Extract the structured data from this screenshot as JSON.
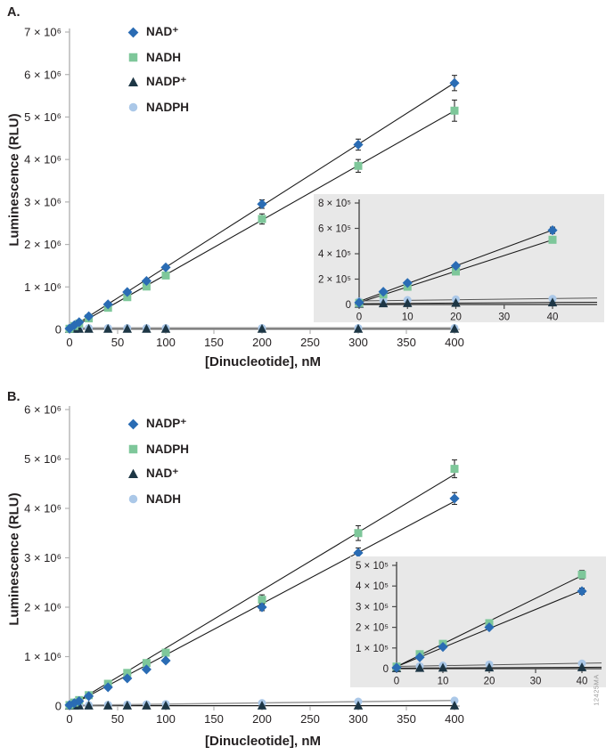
{
  "figure_id": "12425MA",
  "colors": {
    "diamond_blue": "#2a6cb4",
    "square_green": "#7ec79a",
    "triangle_navy": "#1d3645",
    "circle_lightblue": "#abc8e8",
    "fit_line": "#1a1a1a",
    "gray_line": "#999999",
    "axis_spine_main": "#b3b3b3",
    "axis_spine_inset": "#4a4a4a",
    "inset_background": "#e8e8e8",
    "text": "#231f20"
  },
  "panels": [
    {
      "label": "A.",
      "ylabel": "Luminescence (RLU)",
      "xlabel": "[Dinucleotide], nM"
    },
    {
      "label": "B.",
      "ylabel": "Luminescence (RLU)",
      "xlabel": "[Dinucleotide], nM"
    }
  ],
  "chart_data": [
    {
      "id": "A-main",
      "panel": "A",
      "role": "main",
      "type": "scatter",
      "title": "",
      "xlabel": "[Dinucleotide], nM",
      "ylabel": "Luminescence (RLU)",
      "xlim": [
        0,
        400
      ],
      "ylim": [
        0,
        7000000
      ],
      "xticks": [
        0,
        50,
        100,
        150,
        200,
        250,
        300,
        350,
        400
      ],
      "yticks": [
        {
          "v": 0,
          "label": "0"
        },
        {
          "v": 1000000,
          "label": "1 × 10⁶"
        },
        {
          "v": 2000000,
          "label": "2 × 10⁶"
        },
        {
          "v": 3000000,
          "label": "3 × 10⁶"
        },
        {
          "v": 4000000,
          "label": "4 × 10⁶"
        },
        {
          "v": 5000000,
          "label": "5 × 10⁶"
        },
        {
          "v": 6000000,
          "label": "6 × 10⁶"
        },
        {
          "v": 7000000,
          "label": "7 × 10⁶"
        }
      ],
      "grid": false,
      "legend_position": "upper-left-inside",
      "series": [
        {
          "name": "NAD⁺",
          "marker": "diamond",
          "color": "#2a6cb4",
          "line_color": "#1a1a1a",
          "line_width": 1.1,
          "x": [
            0,
            5,
            10,
            20,
            40,
            60,
            80,
            100,
            200,
            300,
            400
          ],
          "y": [
            20000,
            100000,
            170000,
            310000,
            590000,
            880000,
            1140000,
            1460000,
            2950000,
            4350000,
            5800000
          ],
          "err": [
            0,
            0,
            0,
            0,
            30000,
            40000,
            40000,
            50000,
            100000,
            130000,
            180000
          ]
        },
        {
          "name": "NADH",
          "marker": "square",
          "color": "#7ec79a",
          "line_color": "#1a1a1a",
          "line_width": 1.1,
          "x": [
            0,
            5,
            10,
            20,
            40,
            60,
            80,
            100,
            200,
            300,
            400
          ],
          "y": [
            15000,
            80000,
            140000,
            260000,
            510000,
            760000,
            1010000,
            1270000,
            2600000,
            3850000,
            5150000
          ],
          "err": [
            0,
            0,
            0,
            0,
            30000,
            40000,
            50000,
            60000,
            120000,
            150000,
            250000
          ]
        },
        {
          "name": "NADP⁺",
          "marker": "triangle",
          "color": "#1d3645",
          "line_color": "#1a1a1a",
          "line_width": 1,
          "x": [
            0,
            5,
            10,
            20,
            40,
            60,
            80,
            100,
            200,
            300,
            400
          ],
          "y": [
            12000,
            12000,
            12000,
            12000,
            12000,
            12000,
            12000,
            12000,
            12000,
            12000,
            12000
          ]
        },
        {
          "name": "NADPH",
          "marker": "circle",
          "color": "#abc8e8",
          "line_color": "#999999",
          "line_width": 2,
          "x": [
            0,
            5,
            10,
            20,
            40,
            60,
            80,
            100,
            200,
            300,
            400
          ],
          "y": [
            32000,
            32000,
            32000,
            32000,
            32000,
            32000,
            32000,
            32000,
            32000,
            32000,
            32000
          ]
        }
      ]
    },
    {
      "id": "A-inset",
      "panel": "A",
      "role": "inset",
      "type": "scatter",
      "title": "",
      "xlabel": "",
      "ylabel": "",
      "xlim": [
        0,
        40
      ],
      "ylim": [
        0,
        800000
      ],
      "xticks": [
        0,
        10,
        20,
        30,
        40
      ],
      "yticks": [
        {
          "v": 0,
          "label": "0"
        },
        {
          "v": 200000,
          "label": "2 × 10⁵"
        },
        {
          "v": 400000,
          "label": "4 × 10⁵"
        },
        {
          "v": 600000,
          "label": "6 × 10⁵"
        },
        {
          "v": 800000,
          "label": "8 × 10⁵"
        }
      ],
      "grid": false,
      "legend_position": "none",
      "series": [
        {
          "name": "NAD⁺",
          "marker": "diamond",
          "color": "#2a6cb4",
          "line_color": "#1a1a1a",
          "line_width": 1.1,
          "x": [
            0,
            5,
            10,
            20,
            40
          ],
          "y": [
            15000,
            100000,
            170000,
            305000,
            585000
          ],
          "err": [
            0,
            0,
            0,
            0,
            25000
          ]
        },
        {
          "name": "NADH",
          "marker": "square",
          "color": "#7ec79a",
          "line_color": "#1a1a1a",
          "line_width": 1.1,
          "x": [
            0,
            5,
            10,
            20,
            40
          ],
          "y": [
            12000,
            80000,
            140000,
            260000,
            510000
          ],
          "err": [
            0,
            0,
            0,
            0,
            20000
          ]
        },
        {
          "name": "NADP⁺",
          "marker": "triangle",
          "color": "#1d3645",
          "line_color": "#1a1a1a",
          "line_width": 1,
          "extend": true,
          "x": [
            0,
            5,
            10,
            20,
            40
          ],
          "y": [
            5000,
            8000,
            10000,
            12000,
            15000
          ]
        },
        {
          "name": "NADPH",
          "marker": "circle",
          "color": "#abc8e8",
          "line_color": "#555555",
          "line_width": 1,
          "extend": true,
          "x": [
            0,
            5,
            10,
            20,
            40
          ],
          "y": [
            25000,
            30000,
            35000,
            40000,
            45000
          ]
        }
      ]
    },
    {
      "id": "B-main",
      "panel": "B",
      "role": "main",
      "type": "scatter",
      "title": "",
      "xlabel": "[Dinucleotide], nM",
      "ylabel": "Luminescence (RLU)",
      "xlim": [
        0,
        400
      ],
      "ylim": [
        0,
        6000000
      ],
      "xticks": [
        0,
        50,
        100,
        150,
        200,
        250,
        300,
        350,
        400
      ],
      "yticks": [
        {
          "v": 0,
          "label": "0"
        },
        {
          "v": 1000000,
          "label": "1 × 10⁶"
        },
        {
          "v": 2000000,
          "label": "2 × 10⁶"
        },
        {
          "v": 3000000,
          "label": "3 × 10⁶"
        },
        {
          "v": 4000000,
          "label": "4 × 10⁶"
        },
        {
          "v": 5000000,
          "label": "5 × 10⁶"
        },
        {
          "v": 6000000,
          "label": "6 × 10⁶"
        }
      ],
      "grid": false,
      "legend_position": "upper-left-inside",
      "series": [
        {
          "name": "NADP⁺",
          "marker": "diamond",
          "color": "#2a6cb4",
          "line_color": "#1a1a1a",
          "line_width": 1.1,
          "x": [
            0,
            5,
            10,
            20,
            40,
            60,
            80,
            100,
            200,
            300,
            400
          ],
          "y": [
            20000,
            60000,
            100000,
            200000,
            380000,
            560000,
            740000,
            920000,
            2000000,
            3100000,
            4200000
          ],
          "err": [
            0,
            0,
            0,
            0,
            20000,
            30000,
            30000,
            40000,
            70000,
            100000,
            120000
          ]
        },
        {
          "name": "NADPH",
          "marker": "square",
          "color": "#7ec79a",
          "line_color": "#1a1a1a",
          "line_width": 1.1,
          "x": [
            0,
            5,
            10,
            20,
            40,
            60,
            80,
            100,
            200,
            300,
            400
          ],
          "y": [
            20000,
            70000,
            120000,
            220000,
            450000,
            670000,
            870000,
            1080000,
            2150000,
            3500000,
            4800000
          ],
          "err": [
            0,
            0,
            0,
            0,
            30000,
            40000,
            40000,
            50000,
            100000,
            150000,
            180000
          ]
        },
        {
          "name": "NAD⁺",
          "marker": "triangle",
          "color": "#1d3645",
          "line_color": "#1a1a1a",
          "line_width": 1,
          "x": [
            0,
            5,
            10,
            20,
            40,
            60,
            80,
            100,
            200,
            300,
            400
          ],
          "y": [
            8000,
            8000,
            8000,
            8000,
            8000,
            8000,
            8000,
            8000,
            8000,
            8000,
            8000
          ]
        },
        {
          "name": "NADH",
          "marker": "circle",
          "color": "#abc8e8",
          "line_color": "#999999",
          "line_width": 1.5,
          "x": [
            0,
            5,
            10,
            20,
            40,
            60,
            80,
            100,
            200,
            300,
            400
          ],
          "y": [
            10000,
            12000,
            15000,
            20000,
            25000,
            30000,
            35000,
            40000,
            60000,
            90000,
            110000
          ]
        }
      ]
    },
    {
      "id": "B-inset",
      "panel": "B",
      "role": "inset",
      "type": "scatter",
      "title": "",
      "xlabel": "",
      "ylabel": "",
      "xlim": [
        0,
        40
      ],
      "ylim": [
        0,
        500000
      ],
      "xticks": [
        0,
        10,
        20,
        30,
        40
      ],
      "yticks": [
        {
          "v": 0,
          "label": "0"
        },
        {
          "v": 100000,
          "label": "1 × 10⁵"
        },
        {
          "v": 200000,
          "label": "2 × 10⁵"
        },
        {
          "v": 300000,
          "label": "3 × 10⁵"
        },
        {
          "v": 400000,
          "label": "4 × 10⁵"
        },
        {
          "v": 500000,
          "label": "5 × 10⁵"
        }
      ],
      "grid": false,
      "legend_position": "none",
      "series": [
        {
          "name": "NADP⁺",
          "marker": "diamond",
          "color": "#2a6cb4",
          "line_color": "#1a1a1a",
          "line_width": 1.1,
          "x": [
            0,
            5,
            10,
            20,
            40
          ],
          "y": [
            5000,
            55000,
            105000,
            200000,
            375000
          ],
          "err": [
            0,
            0,
            0,
            0,
            15000
          ]
        },
        {
          "name": "NADPH",
          "marker": "square",
          "color": "#7ec79a",
          "line_color": "#1a1a1a",
          "line_width": 1.1,
          "x": [
            0,
            5,
            10,
            20,
            40
          ],
          "y": [
            10000,
            70000,
            120000,
            220000,
            455000
          ],
          "err": [
            0,
            0,
            5000,
            8000,
            20000
          ]
        },
        {
          "name": "NAD⁺",
          "marker": "triangle",
          "color": "#1d3645",
          "line_color": "#1a1a1a",
          "line_width": 1,
          "extend": true,
          "x": [
            0,
            5,
            10,
            20,
            40
          ],
          "y": [
            2000,
            3000,
            4000,
            5000,
            6000
          ]
        },
        {
          "name": "NADH",
          "marker": "circle",
          "color": "#abc8e8",
          "line_color": "#555555",
          "line_width": 1,
          "extend": true,
          "x": [
            0,
            5,
            10,
            20,
            40
          ],
          "y": [
            10000,
            12000,
            15000,
            20000,
            25000
          ]
        }
      ]
    }
  ]
}
